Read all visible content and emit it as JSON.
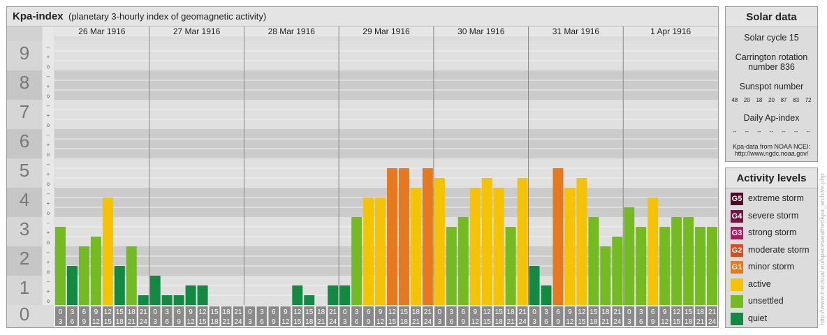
{
  "title": "Kpa-index",
  "subtitle": "(planetary 3-hourly index of geomagnetic activity)",
  "chart_data": {
    "type": "bar",
    "ylim": [
      0,
      9
    ],
    "y_ticks": [
      "0",
      "1",
      "2",
      "3",
      "4",
      "5",
      "6",
      "7",
      "8",
      "9"
    ],
    "minor_labels": [
      "o",
      "+",
      "–"
    ],
    "days": [
      "26 Mar 1916",
      "27 Mar 1916",
      "28 Mar 1916",
      "29 Mar 1916",
      "30 Mar 1916",
      "31 Mar 1916",
      "1 Apr 1916"
    ],
    "hour_start_labels": [
      "0",
      "3",
      "6",
      "9",
      "12",
      "15",
      "18",
      "21"
    ],
    "hour_end_labels": [
      "3",
      "6",
      "9",
      "12",
      "15",
      "18",
      "21",
      "24"
    ],
    "values": [
      2.667,
      1.333,
      2.0,
      2.333,
      3.667,
      1.333,
      2.0,
      0.333,
      1.0,
      0.333,
      0.333,
      0.667,
      0.667,
      0.0,
      0.0,
      0.0,
      0.0,
      0.0,
      0.0,
      0.0,
      0.667,
      0.333,
      0.0,
      0.667,
      0.667,
      3.0,
      3.667,
      3.667,
      4.667,
      4.667,
      4.0,
      4.667,
      4.333,
      2.667,
      3.0,
      4.0,
      4.333,
      4.0,
      2.667,
      4.333,
      1.333,
      0.667,
      4.667,
      4.0,
      4.333,
      3.0,
      2.0,
      2.333,
      3.333,
      2.667,
      3.667,
      2.667,
      3.0,
      3.0,
      2.667,
      2.667
    ],
    "colors": {
      "quiet": "#138a43",
      "unsettled": "#74bb22",
      "active": "#f6c300",
      "minor_storm": "#e6781e",
      "moderate_storm": "#dc4b1e",
      "strong_storm": "#b2185c",
      "severe_storm": "#7a1040",
      "extreme_storm": "#4a0a25"
    }
  },
  "solar": {
    "heading": "Solar data",
    "cycle": "Solar cycle 15",
    "carrington_1": "Carrington rotation",
    "carrington_2": "number 836",
    "sunspot_label": "Sunspot number",
    "sunspot_values": [
      "48",
      "20",
      "18",
      "20",
      "87",
      "83",
      "72"
    ],
    "ap_label": "Daily Ap-index",
    "ap_values": [
      "--",
      "--",
      "--",
      "--",
      "--",
      "--",
      "--"
    ],
    "source_1": "Kpa-data from NOAA NCEI:",
    "source_2": "http://www.ngdc.noaa.gov/"
  },
  "activity": {
    "heading": "Activity levels",
    "items": [
      {
        "badge": "G5",
        "label": "extreme storm",
        "color": "#4a0a25"
      },
      {
        "badge": "G4",
        "label": "severe storm",
        "color": "#7a1040"
      },
      {
        "badge": "G3",
        "label": "strong storm",
        "color": "#b2185c"
      },
      {
        "badge": "G2",
        "label": "moderate storm",
        "color": "#dc4b1e"
      },
      {
        "badge": "G1",
        "label": "minor storm",
        "color": "#e6781e"
      },
      {
        "badge": "",
        "label": "active",
        "color": "#f6c300"
      },
      {
        "badge": "",
        "label": "unsettled",
        "color": "#74bb22"
      },
      {
        "badge": "",
        "label": "quiet",
        "color": "#138a43"
      }
    ]
  },
  "watermark": "http://www.theusual.eu/spaceweather/kpa_archive.php"
}
